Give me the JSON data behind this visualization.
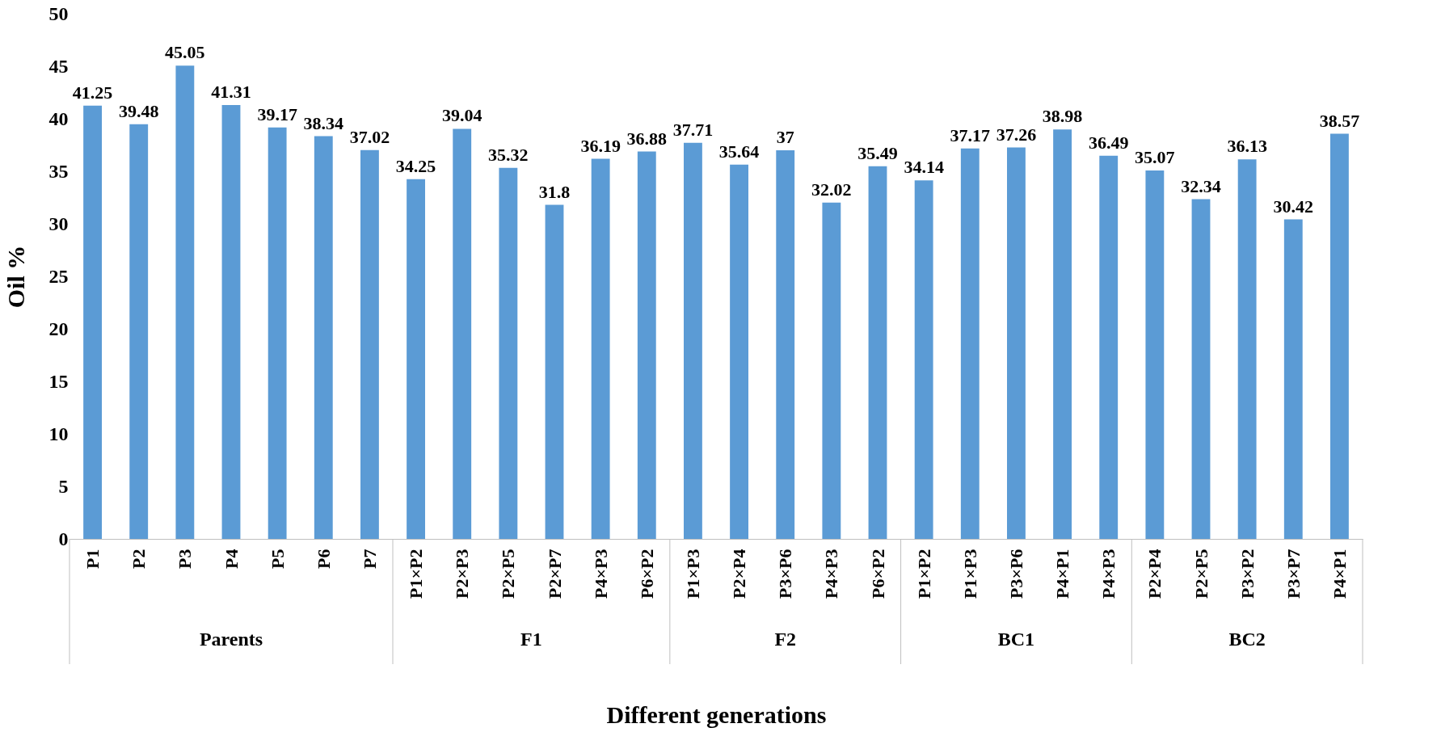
{
  "chart_data": {
    "type": "bar",
    "xlabel": "Different generations",
    "ylabel": "Oil %",
    "categories": [
      "P1",
      "P2",
      "P3",
      "P4",
      "P5",
      "P6",
      "P7",
      "P1×P2",
      "P2×P3",
      "P2×P5",
      "P2×P7",
      "P4×P3",
      "P6×P2",
      "P1×P3",
      "P2×P4",
      "P3×P6",
      "P4×P3",
      "P6×P2",
      "P1×P2",
      "P1×P3",
      "P3×P6",
      "P4×P1",
      "P4×P3",
      "P2×P4",
      "P2×P5",
      "P3×P2",
      "P3×P7",
      "P4×P1"
    ],
    "values": [
      41.25,
      39.48,
      45.05,
      41.31,
      39.17,
      38.34,
      37.02,
      34.25,
      39.04,
      35.32,
      31.8,
      36.19,
      36.88,
      37.71,
      35.64,
      37,
      32.02,
      35.49,
      34.14,
      37.17,
      37.26,
      38.98,
      36.49,
      35.07,
      32.34,
      36.13,
      30.42,
      38.57
    ],
    "color": "#5b9bd5",
    "ylim": [
      0,
      50
    ],
    "yticks": [
      0,
      5,
      10,
      15,
      20,
      25,
      30,
      35,
      40,
      45,
      50
    ],
    "grid": false,
    "data_labels": true,
    "annotations": [
      "Parents",
      "F1",
      "F2",
      "BC1",
      "BC2"
    ]
  }
}
